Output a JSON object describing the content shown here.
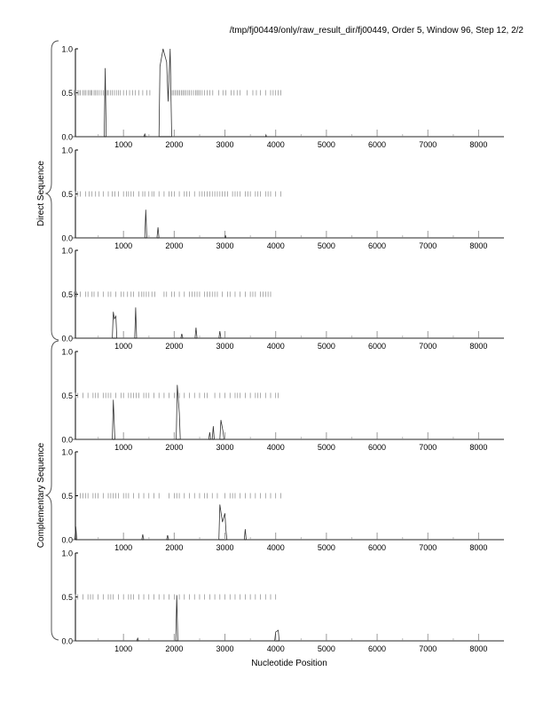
{
  "chart_data": {
    "type": "line",
    "title": "/tmp/fj00449/only/raw_result_dir/fj00449, Order 5, Window 96, Step 12, 2/2",
    "xlabel": "Nucleotide Position",
    "group_labels": [
      "Direct Sequence",
      "Complementary Sequence"
    ],
    "xlim": [
      0,
      8500
    ],
    "ylim": [
      0,
      1
    ],
    "xticks": [
      1000,
      2000,
      3000,
      4000,
      5000,
      6000,
      7000,
      8000
    ],
    "yticks": [
      "0.0",
      "0.5",
      "1.0"
    ],
    "panels": [
      {
        "name": "direct-frame-1",
        "peaks": [
          [
            0,
            0
          ],
          [
            620,
            0
          ],
          [
            640,
            0.78
          ],
          [
            660,
            0
          ],
          [
            1400,
            0
          ],
          [
            1420,
            0.03
          ],
          [
            1440,
            0
          ],
          [
            1700,
            0
          ],
          [
            1720,
            0.8
          ],
          [
            1780,
            1.0
          ],
          [
            1850,
            0.85
          ],
          [
            1880,
            0.4
          ],
          [
            1920,
            1.0
          ],
          [
            1950,
            0
          ],
          [
            3800,
            0
          ],
          [
            3810,
            0.02
          ],
          [
            3820,
            0
          ],
          [
            8500,
            0
          ]
        ],
        "stops": [
          30,
          60,
          90,
          120,
          150,
          200,
          230,
          260,
          300,
          330,
          360,
          380,
          420,
          450,
          480,
          520,
          560,
          600,
          640,
          680,
          700,
          740,
          780,
          820,
          860,
          900,
          940,
          1000,
          1060,
          1120,
          1180,
          1230,
          1300,
          1380,
          1460,
          1520,
          1960,
          1990,
          2020,
          2050,
          2080,
          2110,
          2140,
          2170,
          2200,
          2230,
          2270,
          2300,
          2340,
          2380,
          2420,
          2450,
          2480,
          2510,
          2550,
          2600,
          2650,
          2700,
          2760,
          2880,
          2960,
          3020,
          3120,
          3180,
          3240,
          3300,
          3440,
          3550,
          3620,
          3700,
          3800,
          3900,
          3950,
          4000,
          4050,
          4100
        ]
      },
      {
        "name": "direct-frame-2",
        "peaks": [
          [
            0,
            0
          ],
          [
            1420,
            0
          ],
          [
            1440,
            0.32
          ],
          [
            1460,
            0
          ],
          [
            1660,
            0
          ],
          [
            1680,
            0.12
          ],
          [
            1700,
            0
          ],
          [
            3000,
            0
          ],
          [
            3010,
            0.03
          ],
          [
            3020,
            0
          ],
          [
            8500,
            0
          ]
        ],
        "stops": [
          50,
          100,
          150,
          250,
          320,
          380,
          450,
          520,
          600,
          700,
          780,
          830,
          900,
          1000,
          1060,
          1100,
          1150,
          1200,
          1300,
          1380,
          1420,
          1500,
          1560,
          1600,
          1700,
          1800,
          1900,
          1950,
          2000,
          2100,
          2200,
          2250,
          2300,
          2400,
          2500,
          2550,
          2600,
          2650,
          2700,
          2750,
          2800,
          2850,
          2900,
          2950,
          3000,
          3050,
          3150,
          3200,
          3250,
          3300,
          3400,
          3450,
          3500,
          3600,
          3650,
          3700,
          3800,
          3850,
          3900,
          4000,
          4100
        ]
      },
      {
        "name": "direct-frame-3",
        "peaks": [
          [
            0,
            0
          ],
          [
            780,
            0
          ],
          [
            800,
            0.3
          ],
          [
            820,
            0.22
          ],
          [
            850,
            0.25
          ],
          [
            870,
            0
          ],
          [
            1220,
            0
          ],
          [
            1240,
            0.35
          ],
          [
            1260,
            0
          ],
          [
            2130,
            0
          ],
          [
            2150,
            0.05
          ],
          [
            2170,
            0
          ],
          [
            2410,
            0
          ],
          [
            2430,
            0.12
          ],
          [
            2450,
            0
          ],
          [
            2880,
            0
          ],
          [
            2900,
            0.08
          ],
          [
            2920,
            0
          ],
          [
            8500,
            0
          ]
        ],
        "stops": [
          30,
          80,
          150,
          250,
          300,
          380,
          420,
          500,
          600,
          700,
          750,
          850,
          950,
          1000,
          1080,
          1150,
          1200,
          1300,
          1360,
          1400,
          1450,
          1500,
          1560,
          1620,
          1800,
          1850,
          1950,
          2000,
          2100,
          2200,
          2300,
          2350,
          2400,
          2450,
          2500,
          2600,
          2650,
          2700,
          2750,
          2800,
          2850,
          2950,
          3050,
          3100,
          3200,
          3300,
          3400,
          3500,
          3550,
          3600,
          3700,
          3750,
          3800,
          3850,
          3900
        ]
      },
      {
        "name": "complementary-frame-1",
        "peaks": [
          [
            0,
            0
          ],
          [
            780,
            0
          ],
          [
            800,
            0.45
          ],
          [
            830,
            0
          ],
          [
            2040,
            0
          ],
          [
            2060,
            0.62
          ],
          [
            2100,
            0.3
          ],
          [
            2120,
            0
          ],
          [
            2680,
            0
          ],
          [
            2700,
            0.08
          ],
          [
            2720,
            0
          ],
          [
            2750,
            0
          ],
          [
            2770,
            0.15
          ],
          [
            2790,
            0
          ],
          [
            2900,
            0
          ],
          [
            2920,
            0.22
          ],
          [
            2960,
            0.1
          ],
          [
            2980,
            0
          ],
          [
            8500,
            0
          ]
        ],
        "stops": [
          50,
          100,
          200,
          300,
          400,
          450,
          500,
          600,
          650,
          700,
          750,
          850,
          950,
          1000,
          1100,
          1150,
          1200,
          1250,
          1300,
          1400,
          1450,
          1500,
          1600,
          1700,
          1800,
          1900,
          2000,
          2100,
          2200,
          2300,
          2400,
          2500,
          2600,
          2650,
          2800,
          2900,
          3000,
          3100,
          3200,
          3250,
          3300,
          3400,
          3500,
          3600,
          3650,
          3700,
          3800,
          3900,
          4000,
          4050
        ]
      },
      {
        "name": "complementary-frame-2",
        "peaks": [
          [
            0,
            0
          ],
          [
            40,
            0
          ],
          [
            60,
            0.15
          ],
          [
            80,
            0
          ],
          [
            1360,
            0
          ],
          [
            1380,
            0.06
          ],
          [
            1400,
            0
          ],
          [
            1850,
            0
          ],
          [
            1870,
            0.05
          ],
          [
            1890,
            0
          ],
          [
            2880,
            0
          ],
          [
            2900,
            0.4
          ],
          [
            2950,
            0.2
          ],
          [
            3000,
            0.3
          ],
          [
            3020,
            0.1
          ],
          [
            3040,
            0
          ],
          [
            3380,
            0
          ],
          [
            3400,
            0.12
          ],
          [
            3420,
            0
          ],
          [
            8500,
            0
          ]
        ],
        "stops": [
          150,
          200,
          250,
          300,
          400,
          450,
          500,
          600,
          700,
          750,
          800,
          850,
          900,
          1000,
          1050,
          1100,
          1200,
          1300,
          1400,
          1500,
          1600,
          1700,
          1900,
          2000,
          2050,
          2100,
          2200,
          2300,
          2400,
          2500,
          2600,
          2650,
          2750,
          2850,
          3000,
          3100,
          3150,
          3200,
          3300,
          3400,
          3500,
          3600,
          3700,
          3800,
          3900,
          4000,
          4100
        ]
      },
      {
        "name": "complementary-frame-3",
        "peaks": [
          [
            0,
            0
          ],
          [
            1260,
            0
          ],
          [
            1280,
            0.03
          ],
          [
            1300,
            0
          ],
          [
            2030,
            0
          ],
          [
            2050,
            0.52
          ],
          [
            2070,
            0
          ],
          [
            3980,
            0
          ],
          [
            4000,
            0.1
          ],
          [
            4050,
            0.12
          ],
          [
            4070,
            0
          ],
          [
            8500,
            0
          ]
        ],
        "stops": [
          50,
          100,
          200,
          300,
          350,
          400,
          500,
          600,
          700,
          750,
          800,
          900,
          1000,
          1100,
          1150,
          1200,
          1300,
          1400,
          1500,
          1600,
          1700,
          1800,
          1900,
          2000,
          2100,
          2200,
          2300,
          2400,
          2500,
          2600,
          2700,
          2800,
          2900,
          3000,
          3100,
          3200,
          3300,
          3400,
          3500,
          3600,
          3700,
          3800,
          3900,
          4000
        ]
      }
    ]
  }
}
